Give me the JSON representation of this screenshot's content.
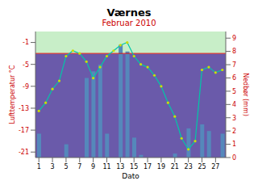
{
  "chart_data": {
    "type": "combo",
    "title": "Værnes",
    "subtitle": "Februar 2010",
    "subtitle_color": "#cc0000",
    "x_label": "Dato",
    "y_label": "Lufttemperatur °C",
    "y2_label": "Nedbør (mm)",
    "axis_color": "#cc0000",
    "x": [
      1,
      2,
      3,
      4,
      5,
      6,
      7,
      8,
      9,
      10,
      11,
      12,
      13,
      14,
      15,
      16,
      17,
      18,
      19,
      20,
      21,
      22,
      23,
      24,
      25,
      26,
      27,
      28
    ],
    "xlim": [
      0.5,
      28.5
    ],
    "xticks": [
      1,
      3,
      5,
      7,
      9,
      11,
      13,
      15,
      17,
      19,
      21,
      23,
      25,
      27
    ],
    "ylim": [
      -22,
      1
    ],
    "yticks": [
      -21,
      -17,
      -13,
      -9,
      -5,
      -1
    ],
    "y2lim": [
      0,
      9.5
    ],
    "y2ticks": [
      0,
      1,
      2,
      3,
      4,
      5,
      6,
      7,
      8,
      9
    ],
    "series": [
      {
        "type": "bar",
        "color": "#5588bb",
        "axis": "y2",
        "values": [
          1.8,
          0.0,
          0.0,
          0.0,
          1.0,
          0.0,
          0.0,
          6.0,
          6.5,
          7.0,
          1.8,
          0.0,
          8.5,
          8.0,
          1.5,
          0.2,
          0.0,
          0.0,
          0.0,
          0.0,
          0.3,
          0.0,
          2.2,
          0.0,
          2.5,
          2.0,
          0.0,
          1.8
        ]
      },
      {
        "type": "line",
        "color": "#00c8a8",
        "marker": "o",
        "marker_color": "#ccdd00",
        "line_style": "solid",
        "values": [
          -13.5,
          -12.0,
          -9.5,
          -8.0,
          -3.5,
          -2.5,
          -3.0,
          -4.5,
          -7.5,
          -5.5,
          -3.5,
          -2.5,
          -1.5,
          -1.0,
          -3.5,
          -5.0,
          -5.5,
          -7.0,
          -9.0,
          -12.0,
          -14.5,
          -18.5,
          -20.5,
          -19.0,
          -6.0,
          -5.5,
          -6.5,
          -6.0
        ]
      }
    ],
    "reference_line": {
      "value": -3.0,
      "color": "#dd1111",
      "color_above": "#c8eec8",
      "color_below": "#6a5aaa"
    },
    "grid": false
  }
}
